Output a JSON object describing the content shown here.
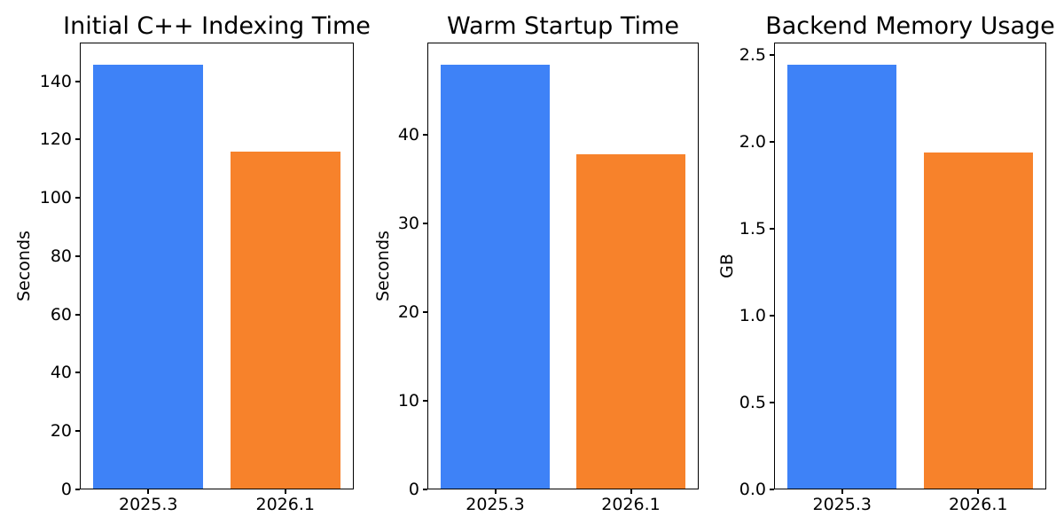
{
  "figure": {
    "background": "#ffffff",
    "text_color": "#000000",
    "spine_color": "#000000",
    "bar_blue": "#3e82f7",
    "bar_orange": "#f7822b"
  },
  "chart_data": [
    {
      "type": "bar",
      "title": "Initial C++ Indexing Time",
      "ylabel": "Seconds",
      "xlabel": "",
      "categories": [
        "2025.3",
        "2026.1"
      ],
      "values": [
        146,
        116
      ],
      "bar_colors": [
        "#3e82f7",
        "#f7822b"
      ],
      "ylim": [
        0,
        153.3
      ],
      "yticks": [
        0,
        20,
        40,
        60,
        80,
        100,
        120,
        140
      ],
      "ytick_labels": [
        "0",
        "20",
        "40",
        "60",
        "80",
        "100",
        "120",
        "140"
      ],
      "grid": false,
      "legend": "none"
    },
    {
      "type": "bar",
      "title": "Warm Startup Time",
      "ylabel": "Seconds",
      "xlabel": "",
      "categories": [
        "2025.3",
        "2026.1"
      ],
      "values": [
        48,
        37.9
      ],
      "bar_colors": [
        "#3e82f7",
        "#f7822b"
      ],
      "ylim": [
        0,
        50.4
      ],
      "yticks": [
        0,
        10,
        20,
        30,
        40
      ],
      "ytick_labels": [
        "0",
        "10",
        "20",
        "30",
        "40"
      ],
      "grid": false,
      "legend": "none"
    },
    {
      "type": "bar",
      "title": "Backend Memory Usage",
      "ylabel": "GB",
      "xlabel": "",
      "categories": [
        "2025.3",
        "2026.1"
      ],
      "values": [
        2.45,
        1.94
      ],
      "bar_colors": [
        "#3e82f7",
        "#f7822b"
      ],
      "ylim": [
        0,
        2.5725
      ],
      "yticks": [
        0,
        0.5,
        1,
        1.5,
        2,
        2.5
      ],
      "ytick_labels": [
        "0.0",
        "0.5",
        "1.0",
        "1.5",
        "2.0",
        "2.5"
      ],
      "grid": false,
      "legend": "none"
    }
  ]
}
